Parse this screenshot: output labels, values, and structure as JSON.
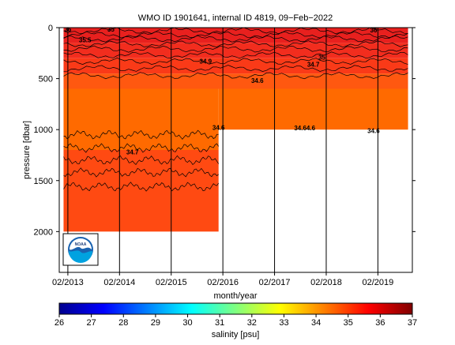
{
  "chart_data": {
    "type": "heatmap",
    "title": "WMO ID 1901641, internal ID 4819, 09−Feb−2022",
    "xlabel": "month/year",
    "ylabel": "pressure [dbar]",
    "colorbar_label": "salinity [psu]",
    "y_axis_inverted": true,
    "ylim": [
      0,
      2400
    ],
    "xlim": [
      "2012-12",
      "2019-10"
    ],
    "x_ticks": [
      {
        "label": "02/2013",
        "date": "2013-02"
      },
      {
        "label": "02/2014",
        "date": "2014-02"
      },
      {
        "label": "02/2015",
        "date": "2015-02"
      },
      {
        "label": "02/2016",
        "date": "2016-02"
      },
      {
        "label": "02/2017",
        "date": "2017-02"
      },
      {
        "label": "02/2018",
        "date": "2018-02"
      },
      {
        "label": "02/2019",
        "date": "2019-02"
      }
    ],
    "y_ticks": [
      0,
      500,
      1000,
      1500,
      2000
    ],
    "colorbar_ticks": [
      26,
      27,
      28,
      29,
      30,
      31,
      32,
      33,
      34,
      35,
      36,
      37
    ],
    "colorbar_range": [
      26,
      37
    ],
    "profile_depth": [
      {
        "period": "2013-01 to 2015-12",
        "max_pressure": 2000
      },
      {
        "period": "2016-01 to 2019-09",
        "max_pressure": 1000
      }
    ],
    "contour_labels": [
      {
        "text": "36",
        "date": "2013-02",
        "pressure": 15
      },
      {
        "text": "35",
        "date": "2013-12",
        "pressure": 15
      },
      {
        "text": "35.5",
        "date": "2013-06",
        "pressure": 120
      },
      {
        "text": "34.9",
        "date": "2015-10",
        "pressure": 330
      },
      {
        "text": "35",
        "date": "2018-01",
        "pressure": 290
      },
      {
        "text": "34.7",
        "date": "2017-11",
        "pressure": 360
      },
      {
        "text": "34.6",
        "date": "2016-10",
        "pressure": 520
      },
      {
        "text": "34.6",
        "date": "2016-01",
        "pressure": 980
      },
      {
        "text": "34.64.6",
        "date": "2017-09",
        "pressure": 985
      },
      {
        "text": "34.6",
        "date": "2019-01",
        "pressure": 1010
      },
      {
        "text": "34.7",
        "date": "2014-05",
        "pressure": 1220
      },
      {
        "text": "36",
        "date": "2019-01",
        "pressure": 25
      }
    ],
    "logo": "NOAA"
  },
  "colors": {
    "colorbar": [
      "#00008f",
      "#0000ff",
      "#0080ff",
      "#00ffff",
      "#80ff80",
      "#ffff00",
      "#ff8000",
      "#ff0000",
      "#800000"
    ],
    "deep_band": "#ff6a00",
    "mid_band": "#ff4a12",
    "surface_band": "#f22d1e"
  },
  "logo_text": "NOAA"
}
